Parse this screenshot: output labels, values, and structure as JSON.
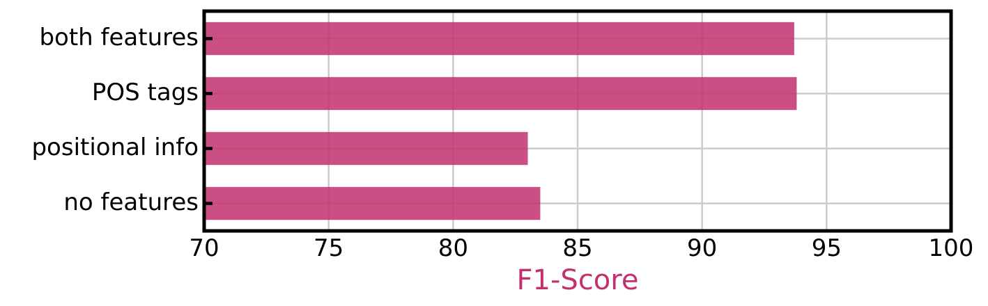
{
  "chart_data": {
    "type": "bar",
    "orientation": "horizontal",
    "categories": [
      "both features",
      "POS tags",
      "positional info",
      "no features"
    ],
    "values": [
      93.7,
      93.8,
      83.0,
      83.5
    ],
    "xlabel": "F1-Score",
    "ylabel": "",
    "title": "",
    "xlim": [
      70,
      100
    ],
    "xticks": [
      "70",
      "75",
      "80",
      "85",
      "90",
      "95",
      "100"
    ],
    "grid": true,
    "colors": {
      "bar": "#c2306e",
      "xlabel": "#c2306e",
      "grid": "#cccccc",
      "axes": "#000000"
    }
  }
}
